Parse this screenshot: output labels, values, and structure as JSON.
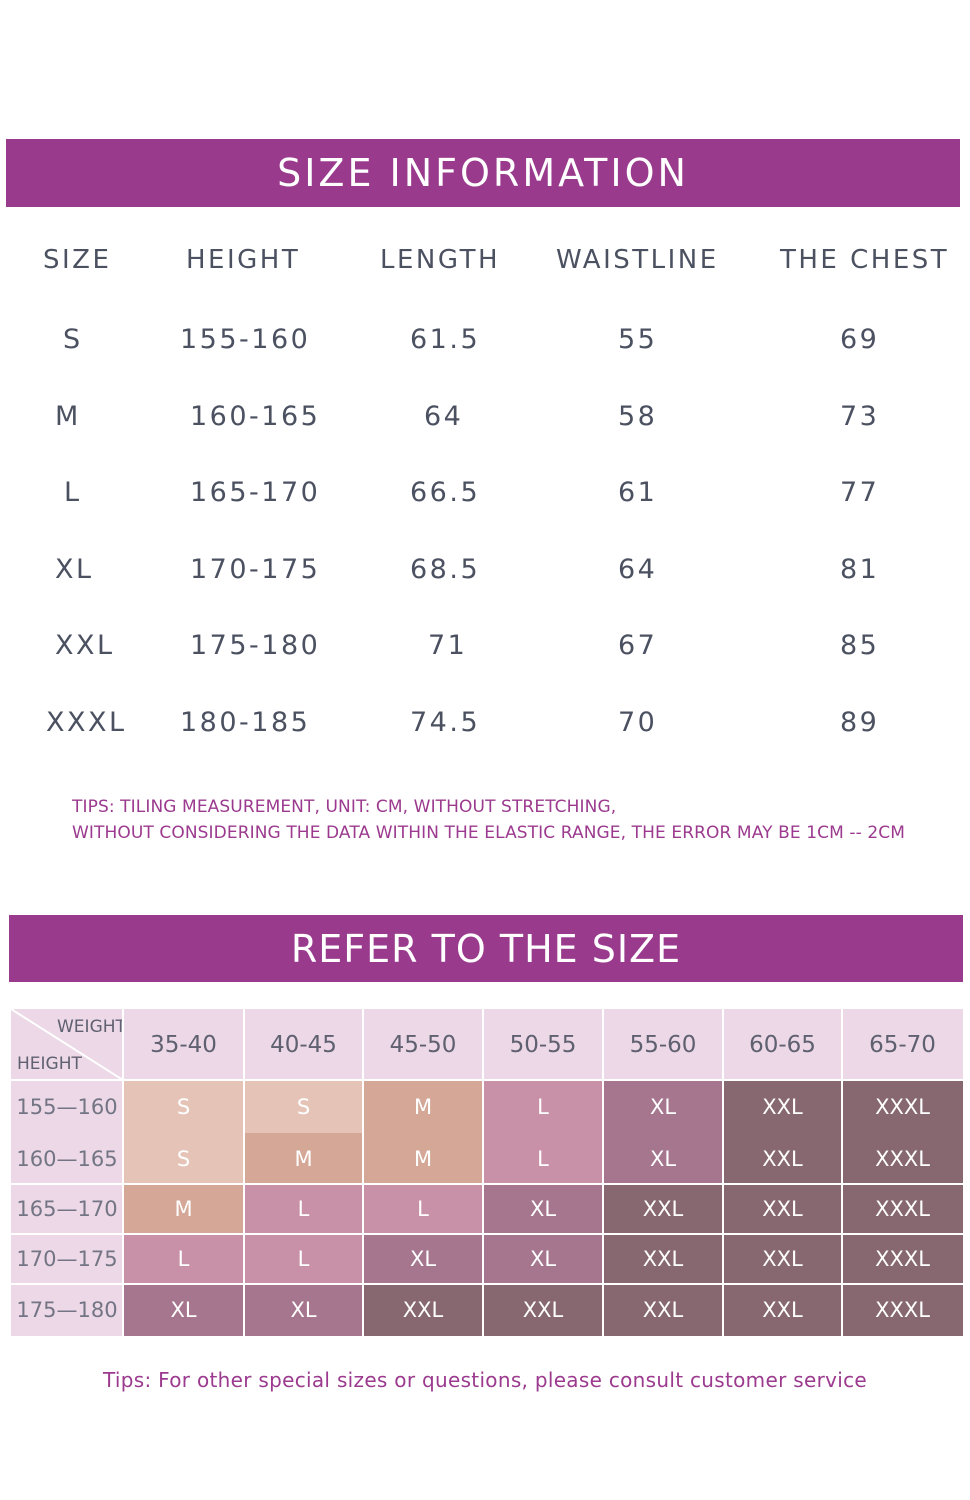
{
  "size_info": {
    "title": "SIZE INFORMATION",
    "headers": [
      "SIZE",
      "HEIGHT",
      "LENGTH",
      "WAISTLINE",
      "THE CHEST"
    ],
    "rows": [
      [
        "S",
        "155-160",
        "61.5",
        "55",
        "69"
      ],
      [
        "M",
        "160-165",
        "64",
        "58",
        "73"
      ],
      [
        "L",
        "165-170",
        "66.5",
        "61",
        "77"
      ],
      [
        "XL",
        "170-175",
        "68.5",
        "64",
        "81"
      ],
      [
        "XXL",
        "175-180",
        "71",
        "67",
        "85"
      ],
      [
        "XXXL",
        "180-185",
        "74.5",
        "70",
        "89"
      ]
    ],
    "tips_line1": "TIPS: TILING MEASUREMENT, UNIT: CM, WITHOUT STRETCHING,",
    "tips_line2": "WITHOUT CONSIDERING THE DATA WITHIN THE ELASTIC RANGE, THE ERROR MAY BE 1CM -- 2CM"
  },
  "size_refer": {
    "title": "REFER TO THE SIZE",
    "corner_weight": "WEIGHT",
    "corner_height": "HEIGHT",
    "weights": [
      "35-40",
      "40-45",
      "45-50",
      "50-55",
      "55-60",
      "60-65",
      "65-70"
    ],
    "heights": [
      "155—160",
      "160—165",
      "165—170",
      "170—175",
      "175—180"
    ],
    "grid": [
      [
        "S",
        "S",
        "M",
        "L",
        "XL",
        "XXL",
        "XXXL"
      ],
      [
        "S",
        "M",
        "M",
        "L",
        "XL",
        "XXL",
        "XXXL"
      ],
      [
        "M",
        "L",
        "L",
        "XL",
        "XXL",
        "XXL",
        "XXXL"
      ],
      [
        "L",
        "L",
        "XL",
        "XL",
        "XXL",
        "XXL",
        "XXXL"
      ],
      [
        "XL",
        "XL",
        "XXL",
        "XXL",
        "XXL",
        "XXL",
        "XXXL"
      ]
    ],
    "size_colors": {
      "S": "#e5c3b7",
      "M": "#d4a796",
      "L": "#c891a8",
      "XL": "#a6768e",
      "XXL": "#876870",
      "XXXL": "#876870"
    },
    "tips": "Tips: For other special sizes or questions, please consult customer service"
  },
  "colors": {
    "banner": "#993a8d",
    "tips_text": "#9b3a8e",
    "header_bg": "#ecd8e6"
  }
}
